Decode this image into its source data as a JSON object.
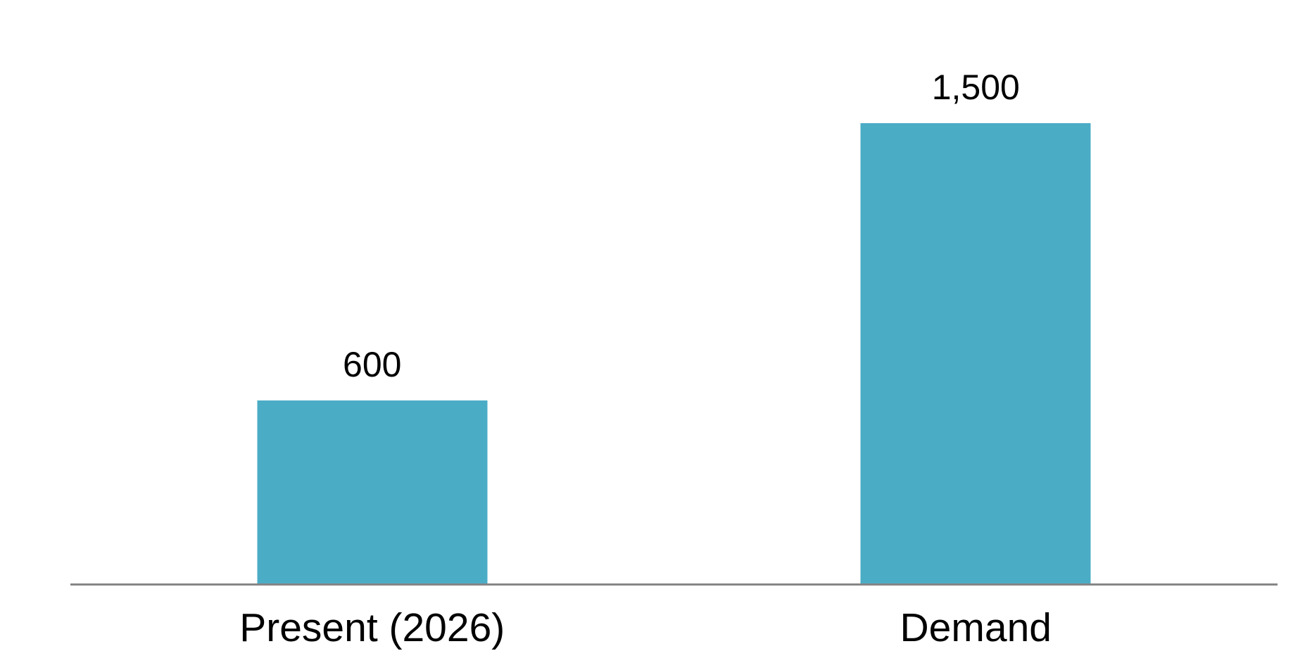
{
  "chart_data": {
    "type": "bar",
    "categories": [
      "Present (2026)",
      "Demand"
    ],
    "values": [
      600,
      1500
    ],
    "value_labels": [
      "600",
      "1,500"
    ],
    "ylim": [
      0,
      1600
    ],
    "grid": false,
    "legend": false,
    "y_axis_visible": false,
    "bar_color": "#4BACC6",
    "axis_line_color": "#868686",
    "label_color": "#000000",
    "background_color": "#FFFFFF"
  }
}
